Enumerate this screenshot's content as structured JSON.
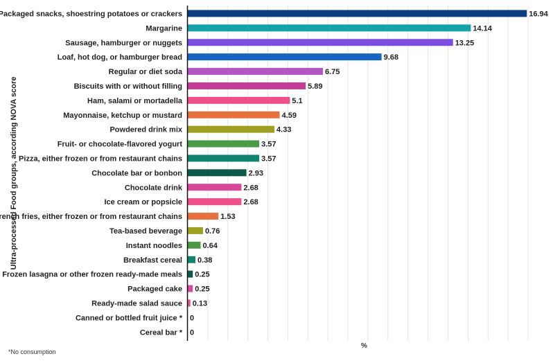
{
  "chart_data": {
    "type": "bar",
    "orientation": "horizontal",
    "title": "",
    "xlabel": "%",
    "ylabel": "Ultra-processed Food groups, according NOVA score",
    "xlim": [
      0,
      17
    ],
    "grid": true,
    "categories": [
      "Packaged snacks, shoestring potatoes or crackers",
      "Margarine",
      "Sausage, hamburger or nuggets",
      "Loaf, hot dog, or hamburger bread",
      "Regular or diet soda",
      "Biscuits with or without filling",
      "Ham, salami or mortadella",
      "Mayonnaise, ketchup or mustard",
      "Powdered drink mix",
      "Fruit- or chocolate-flavored yogurt",
      "Pizza, either frozen or from restaurant chains",
      "Chocolate bar or bonbon",
      "Chocolate drink",
      "Ice cream or popsicle",
      "French fries, either frozen or from restaurant chains",
      "Tea-based beverage",
      "Instant noodles",
      "Breakfast cereal",
      "Frozen lasagna or other frozen ready-made meals",
      "Packaged cake",
      "Ready-made salad sauce",
      "Canned or bottled fruit juice *",
      "Cereal bar *"
    ],
    "values": [
      16.94,
      14.14,
      13.25,
      9.68,
      6.75,
      5.89,
      5.1,
      4.59,
      4.33,
      3.57,
      3.57,
      2.93,
      2.68,
      2.68,
      1.53,
      0.76,
      0.64,
      0.38,
      0.25,
      0.25,
      0.13,
      0,
      0
    ],
    "value_labels": [
      "16.94",
      "14.14",
      "13.25",
      "9.68",
      "6.75",
      "5.89",
      "5.1",
      "4.59",
      "4.33",
      "3.57",
      "3.57",
      "2.93",
      "2.68",
      "2.68",
      "1.53",
      "0.76",
      "0.64",
      "0.38",
      "0.25",
      "0.25",
      "0.13",
      "0",
      "0"
    ],
    "colors": [
      "#0b3d80",
      "#14a1a8",
      "#7a4fe0",
      "#1565c0",
      "#b455c4",
      "#c43c95",
      "#f0508a",
      "#e8703f",
      "#9ea021",
      "#4c9a45",
      "#108470",
      "#0e5a4a",
      "#d8489a",
      "#f0508a",
      "#e8703f",
      "#9ea021",
      "#4c9a45",
      "#108470",
      "#0e5a4a",
      "#d8489a",
      "#f0508a",
      "#e8703f",
      "#9ea021"
    ]
  },
  "footnote": "*No consumption",
  "colors": {
    "grid": "#e6e6e6",
    "axis": "#111111",
    "text": "#222222"
  }
}
